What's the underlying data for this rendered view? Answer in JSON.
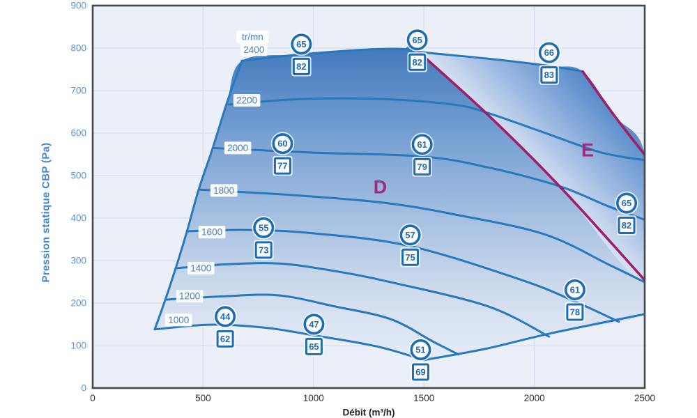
{
  "colors": {
    "curve_blue": "#2778bc",
    "magenta": "#9e2068",
    "marker_blue": "#1e6cb4",
    "rpm_label_text": "#4b7fb9",
    "y_tick": "#5b93d6",
    "y_title": "#3d87d4",
    "x_tick": "#2e2e36",
    "grid": "#d8e0f1",
    "plot_bg": "#ebeff7",
    "border": "#43474e",
    "zone_letter": "#9c2c7c",
    "grad_dark": "#3f77bb",
    "grad_mid": "#78a1d3",
    "grad_soft": "#cfdcee",
    "grad_light": "#e6ecf8"
  },
  "chart_data": {
    "type": "line",
    "title": "",
    "xlabel": "Débit (m³/h)",
    "ylabel": "Pression statique CBP (Pa)",
    "xlim": [
      0,
      2500
    ],
    "ylim": [
      0,
      900
    ],
    "xticks": [
      0,
      500,
      1000,
      1500,
      2000,
      2500
    ],
    "yticks": [
      0,
      100,
      200,
      300,
      400,
      500,
      600,
      700,
      800,
      900
    ],
    "grid": true,
    "speed_unit_label": "tr/mn",
    "curves": [
      {
        "name": "boundary-min-flow",
        "rpm": null,
        "points": [
          [
            281,
            138
          ],
          [
            329,
            208
          ],
          [
            376,
            282
          ],
          [
            427,
            369
          ],
          [
            480,
            467
          ],
          [
            544,
            565
          ],
          [
            607,
            670
          ],
          [
            676,
            770
          ]
        ]
      },
      {
        "name": "rpm-1000",
        "rpm": 1000,
        "points": [
          [
            281,
            138
          ],
          [
            528,
            149
          ],
          [
            781,
            142
          ],
          [
            1002,
            124
          ],
          [
            1286,
            98
          ],
          [
            1501,
            66
          ]
        ]
      },
      {
        "name": "boundary-max-flow",
        "rpm": null,
        "points": [
          [
            1501,
            66
          ],
          [
            1776,
            92
          ],
          [
            2077,
            129
          ],
          [
            2500,
            174
          ]
        ]
      },
      {
        "name": "rpm-1200",
        "rpm": 1200,
        "points": [
          [
            329,
            208
          ],
          [
            598,
            216
          ],
          [
            844,
            218
          ],
          [
            1097,
            192
          ],
          [
            1350,
            162
          ],
          [
            1539,
            110
          ],
          [
            1656,
            79
          ]
        ]
      },
      {
        "name": "rpm-1400",
        "rpm": 1400,
        "points": [
          [
            376,
            282
          ],
          [
            600,
            291
          ],
          [
            844,
            293
          ],
          [
            1100,
            275
          ],
          [
            1350,
            249
          ],
          [
            1792,
            192
          ],
          [
            2067,
            121
          ]
        ]
      },
      {
        "name": "rpm-1600",
        "rpm": 1600,
        "points": [
          [
            427,
            369
          ],
          [
            700,
            372
          ],
          [
            1002,
            364
          ],
          [
            1438,
            334
          ],
          [
            1944,
            254
          ],
          [
            2187,
            203
          ],
          [
            2383,
            156
          ]
        ]
      },
      {
        "name": "rpm-1800",
        "rpm": 1800,
        "points": [
          [
            480,
            467
          ],
          [
            907,
            454
          ],
          [
            1318,
            436
          ],
          [
            1634,
            409
          ],
          [
            2045,
            362
          ],
          [
            2339,
            290
          ],
          [
            2500,
            249
          ]
        ]
      },
      {
        "name": "rpm-2000",
        "rpm": 2000,
        "points": [
          [
            544,
            565
          ],
          [
            1002,
            554
          ],
          [
            1492,
            545
          ],
          [
            1792,
            519
          ],
          [
            2114,
            475
          ],
          [
            2329,
            429
          ],
          [
            2500,
            396
          ]
        ]
      },
      {
        "name": "rpm-2200",
        "rpm": 2200,
        "points": [
          [
            616,
            667
          ],
          [
            939,
            680
          ],
          [
            1318,
            680
          ],
          [
            1634,
            667
          ],
          [
            1779,
            649
          ],
          [
            2045,
            601
          ],
          [
            2298,
            555
          ],
          [
            2500,
            536
          ]
        ]
      },
      {
        "name": "rpm-2400",
        "rpm": 2400,
        "points": [
          [
            676,
            770
          ],
          [
            939,
            785
          ],
          [
            1223,
            796
          ],
          [
            1397,
            798
          ],
          [
            1476,
            791
          ],
          [
            1792,
            775
          ],
          [
            2067,
            758
          ],
          [
            2219,
            745
          ]
        ]
      }
    ],
    "zone_boundary_lines": [
      {
        "name": "zone-boundary-left",
        "points": [
          [
            1476,
            791
          ],
          [
            1792,
            642
          ],
          [
            2114,
            475
          ],
          [
            2500,
            254
          ]
        ]
      },
      {
        "name": "zone-boundary-right",
        "points": [
          [
            2219,
            745
          ],
          [
            2361,
            642
          ],
          [
            2500,
            549
          ]
        ]
      }
    ],
    "regions": [
      {
        "id": "D",
        "points": [
          [
            281,
            138
          ],
          [
            329,
            208
          ],
          [
            376,
            282
          ],
          [
            427,
            369
          ],
          [
            480,
            467
          ],
          [
            544,
            565
          ],
          [
            607,
            670
          ],
          [
            676,
            770
          ],
          [
            939,
            785
          ],
          [
            1223,
            796
          ],
          [
            1397,
            798
          ],
          [
            1476,
            791
          ],
          [
            1792,
            642
          ],
          [
            2114,
            475
          ],
          [
            2500,
            254
          ],
          [
            2500,
            174
          ],
          [
            2077,
            129
          ],
          [
            1776,
            92
          ],
          [
            1501,
            66
          ],
          [
            1286,
            98
          ],
          [
            1002,
            124
          ],
          [
            781,
            142
          ],
          [
            528,
            149
          ]
        ]
      },
      {
        "id": "E",
        "points": [
          [
            1476,
            791
          ],
          [
            1792,
            775
          ],
          [
            2067,
            758
          ],
          [
            2219,
            745
          ],
          [
            2361,
            642
          ],
          [
            2500,
            549
          ],
          [
            2500,
            254
          ],
          [
            2114,
            475
          ],
          [
            1792,
            642
          ]
        ]
      }
    ],
    "zone_labels": [
      {
        "letter": "D",
        "q": 1302,
        "p": 473
      },
      {
        "letter": "E",
        "q": 2241,
        "p": 560
      }
    ],
    "rpm_labels": [
      {
        "text": "tr/mn",
        "q": 724,
        "p": 826
      },
      {
        "text": "2400",
        "q": 730,
        "p": 796
      },
      {
        "text": "2200",
        "q": 698,
        "p": 677
      },
      {
        "text": "2000",
        "q": 657,
        "p": 565
      },
      {
        "text": "1800",
        "q": 594,
        "p": 465
      },
      {
        "text": "1600",
        "q": 540,
        "p": 367
      },
      {
        "text": "1400",
        "q": 490,
        "p": 282
      },
      {
        "text": "1200",
        "q": 439,
        "p": 216
      },
      {
        "text": "1000",
        "q": 389,
        "p": 160
      }
    ],
    "noise_markers": [
      {
        "curve": "rpm-1000",
        "q": 600,
        "p": 142,
        "circle": "44",
        "square": "62"
      },
      {
        "curve": "rpm-1000",
        "q": 1002,
        "p": 124,
        "circle": "47",
        "square": "65"
      },
      {
        "curve": "rpm-1000",
        "q": 1485,
        "p": 64,
        "circle": "51",
        "square": "69"
      },
      {
        "curve": "rpm-1600",
        "q": 774,
        "p": 351,
        "circle": "55",
        "square": "73"
      },
      {
        "curve": "rpm-1600",
        "q": 1438,
        "p": 334,
        "circle": "57",
        "square": "75"
      },
      {
        "curve": "rpm-2000",
        "q": 860,
        "p": 549,
        "circle": "60",
        "square": "77"
      },
      {
        "curve": "rpm-2000",
        "q": 1492,
        "p": 547,
        "circle": "61",
        "square": "79"
      },
      {
        "curve": "rpm-2400",
        "q": 945,
        "p": 783,
        "circle": "65",
        "square": "82"
      },
      {
        "curve": "rpm-2400",
        "q": 1470,
        "p": 793,
        "circle": "65",
        "square": "82"
      },
      {
        "curve": "rpm-2400",
        "q": 2067,
        "p": 763,
        "circle": "66",
        "square": "83"
      },
      {
        "curve": "rpm-2000",
        "q": 2418,
        "p": 409,
        "circle": "65",
        "square": "82"
      },
      {
        "curve": "rpm-1600",
        "q": 2184,
        "p": 205,
        "circle": "61",
        "square": "78"
      }
    ]
  }
}
